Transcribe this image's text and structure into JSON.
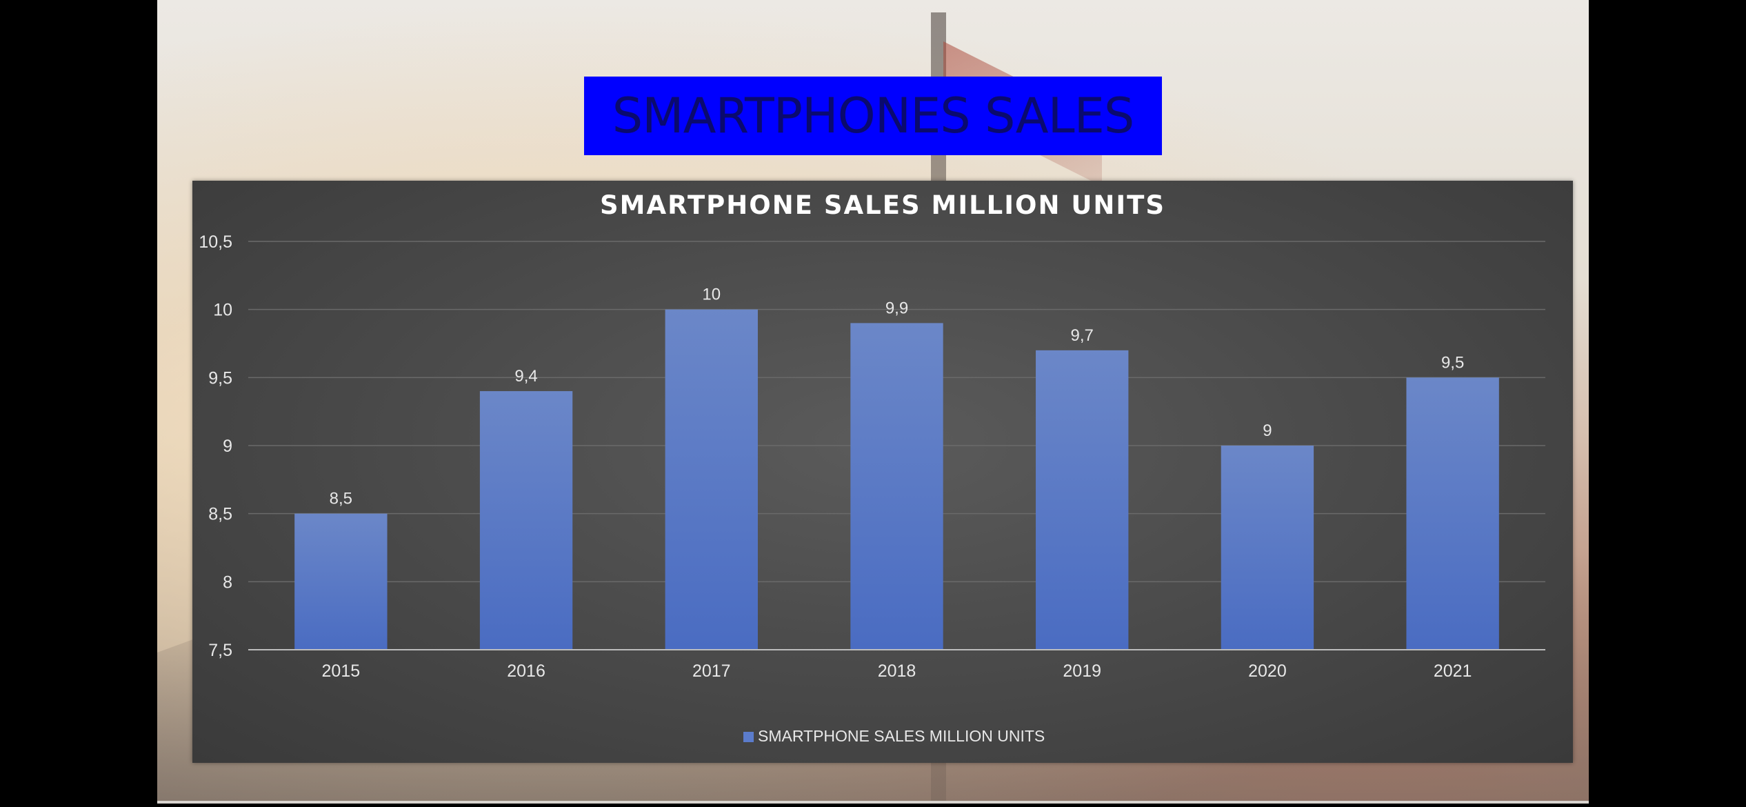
{
  "slide": {
    "heading": "SMARTPHONES SALES"
  },
  "chart_data": {
    "type": "bar",
    "title": "SMARTPHONE SALES MILLION UNITS",
    "categories": [
      "2015",
      "2016",
      "2017",
      "2018",
      "2019",
      "2020",
      "2021"
    ],
    "series": [
      {
        "name": "SMARTPHONE SALES MILLION UNITS",
        "values": [
          8.5,
          9.4,
          10,
          9.9,
          9.7,
          9.0,
          9.5
        ],
        "data_labels": [
          "8,5",
          "9,4",
          "10",
          "9,9",
          "9,7",
          "9",
          "9,5"
        ],
        "color": "#5b7ccc"
      }
    ],
    "ylim": [
      7.5,
      10.5
    ],
    "yticks": [
      7.5,
      8,
      8.5,
      9,
      9.5,
      10,
      10.5
    ],
    "ytick_labels": [
      "7,5",
      "8",
      "8,5",
      "9",
      "9,5",
      "10",
      "10,5"
    ],
    "grid": true,
    "legend": "bottom",
    "xlabel": "",
    "ylabel": ""
  },
  "colors": {
    "heading_box": "#0000ff",
    "heading_text": "#0a0a6e",
    "panel": "#4a4a4a",
    "bar_top": "#6b87c8",
    "bar_bottom": "#4a6cc2"
  }
}
